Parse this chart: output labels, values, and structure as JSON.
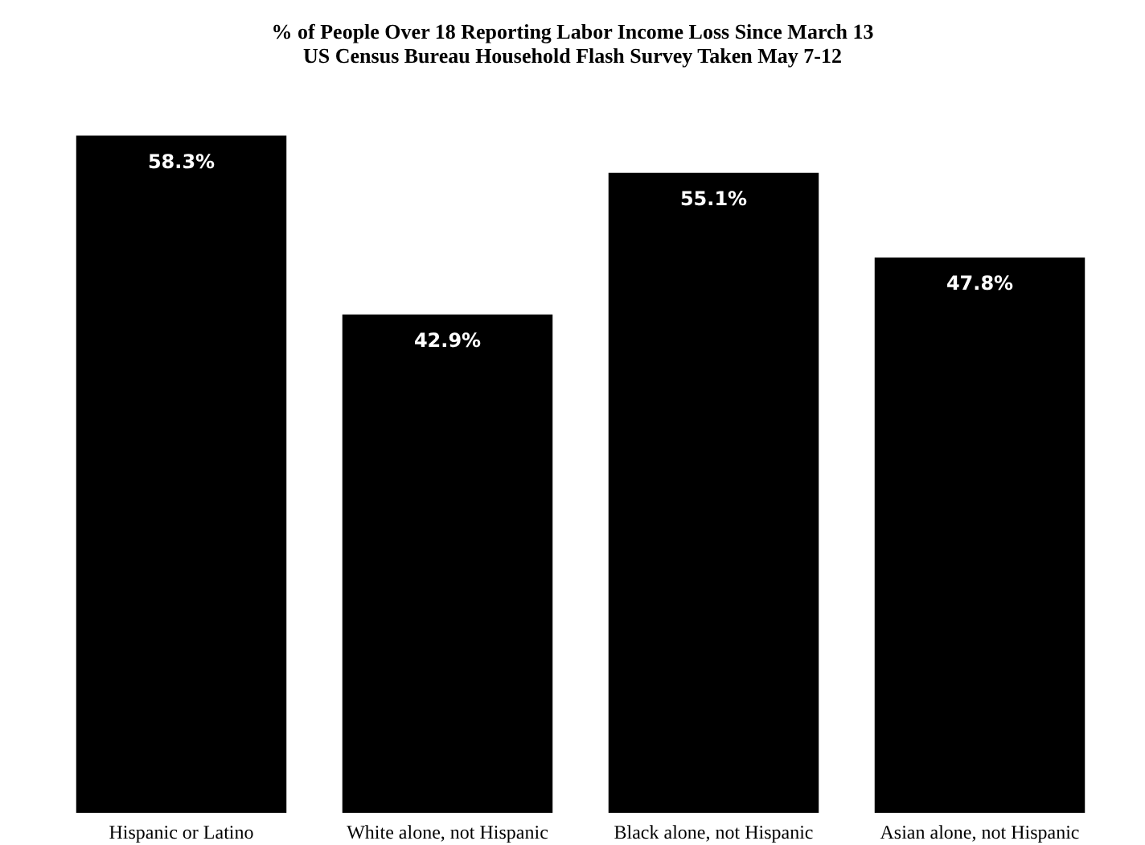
{
  "chart_data": {
    "type": "bar",
    "title": "% of People Over 18 Reporting Labor Income Loss Since March 13",
    "subtitle": "US Census Bureau Household Flash Survey Taken May 7-12",
    "categories": [
      "Hispanic or Latino",
      "White alone, not Hispanic",
      "Black alone, not Hispanic",
      "Asian alone, not Hispanic"
    ],
    "values": [
      58.3,
      42.9,
      55.1,
      47.8
    ],
    "color": "#000000",
    "value_labels": [
      "58.3%",
      "42.9%",
      "55.1%",
      "47.8%"
    ]
  }
}
